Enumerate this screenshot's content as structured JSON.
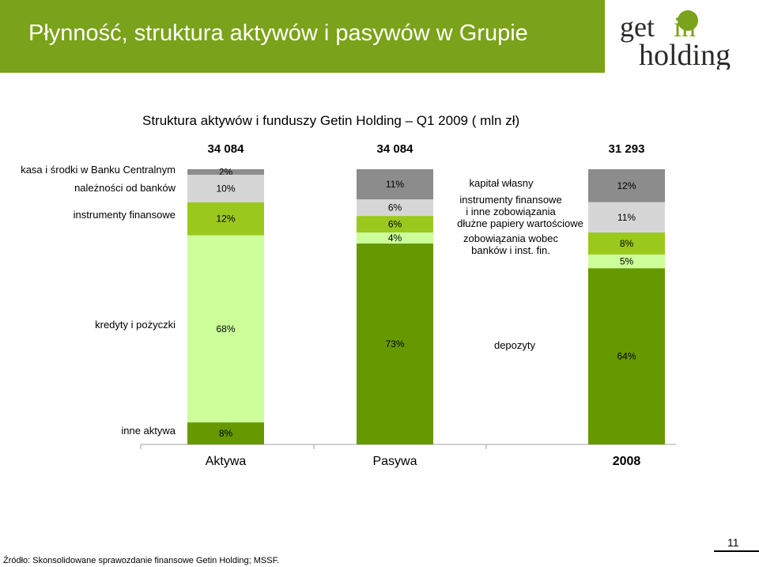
{
  "header": {
    "title": "Płynność, struktura aktywów i pasywów w Grupie",
    "bar_color": "#7aa21a"
  },
  "logo": {
    "line1_a": "get",
    "line1_b": "in",
    "line2": "holding",
    "dark_color": "#2a2a28",
    "accent_color": "#7aa21a"
  },
  "chart_data": {
    "type": "bar",
    "stacked": true,
    "title": "Struktura aktywów i funduszy Getin Holding – Q1 2009 ( mln zł)",
    "categories": [
      "Aktywa",
      "Pasywa",
      "2008"
    ],
    "totals": [
      "34 084",
      "34 084",
      "31 293"
    ],
    "unit": "%",
    "bars": [
      {
        "category": "Aktywa",
        "total": "34 084",
        "segments": [
          {
            "name": "kasa i środki w Banku Centralnym",
            "value": 2,
            "label": "2%",
            "color": "#8c8c8c"
          },
          {
            "name": "należności od banków",
            "value": 10,
            "label": "10%",
            "color": "#d6d6d6"
          },
          {
            "name": "instrumenty finansowe",
            "value": 12,
            "label": "12%",
            "color": "#9bc81c"
          },
          {
            "name": "kredyty i pożyczki",
            "value": 68,
            "label": "68%",
            "color": "#ccff99"
          },
          {
            "name": "inne aktywa",
            "value": 8,
            "label": "8%",
            "color": "#669900"
          }
        ]
      },
      {
        "category": "Pasywa",
        "total": "34 084",
        "segments": [
          {
            "name": "kapitał własny",
            "value": 11,
            "label": "11%",
            "color": "#8c8c8c"
          },
          {
            "name": "instrumenty finansowe i inne zobowiązania",
            "value": 6,
            "label": "6%",
            "color": "#d6d6d6"
          },
          {
            "name": "dłużne papiery wartościowe",
            "value": 6,
            "label": "6%",
            "color": "#9bc81c"
          },
          {
            "name": "zobowiązania wobec banków i inst. fin.",
            "value": 4,
            "label": "4%",
            "color": "#ccff99"
          },
          {
            "name": "depozyty",
            "value": 73,
            "label": "73%",
            "color": "#669900"
          }
        ]
      },
      {
        "category": "2008",
        "total": "31 293",
        "segments": [
          {
            "name": "kapitał własny",
            "value": 12,
            "label": "12%",
            "color": "#8c8c8c"
          },
          {
            "name": "instrumenty finansowe i inne zobowiązania",
            "value": 11,
            "label": "11%",
            "color": "#d6d6d6"
          },
          {
            "name": "dłużne papiery wartościowe",
            "value": 8,
            "label": "8%",
            "color": "#9bc81c"
          },
          {
            "name": "zobowiązania wobec banków i inst. fin.",
            "value": 5,
            "label": "5%",
            "color": "#ccff99"
          },
          {
            "name": "depozyty",
            "value": 64,
            "label": "64%",
            "color": "#669900"
          }
        ]
      }
    ],
    "side_labels": {
      "assets": [
        "kasa i środki w Banku Centralnym",
        "należności od banków",
        "instrumenty finansowe",
        "kredyty i pożyczki",
        "inne aktywa"
      ],
      "liabilities": [
        [
          "kapitał własny"
        ],
        [
          "instrumenty finansowe",
          "i inne zobowiązania"
        ],
        [
          "dłużne papiery wartościowe"
        ],
        [
          "zobowiązania wobec",
          "banków i inst. fin."
        ],
        [
          "depozyty"
        ]
      ]
    },
    "legend": "none",
    "grid": false
  },
  "footer": {
    "source": "Źródło: Skonsolidowane sprawozdanie finansowe Getin Holding; MSSF.",
    "page_number": "11"
  }
}
